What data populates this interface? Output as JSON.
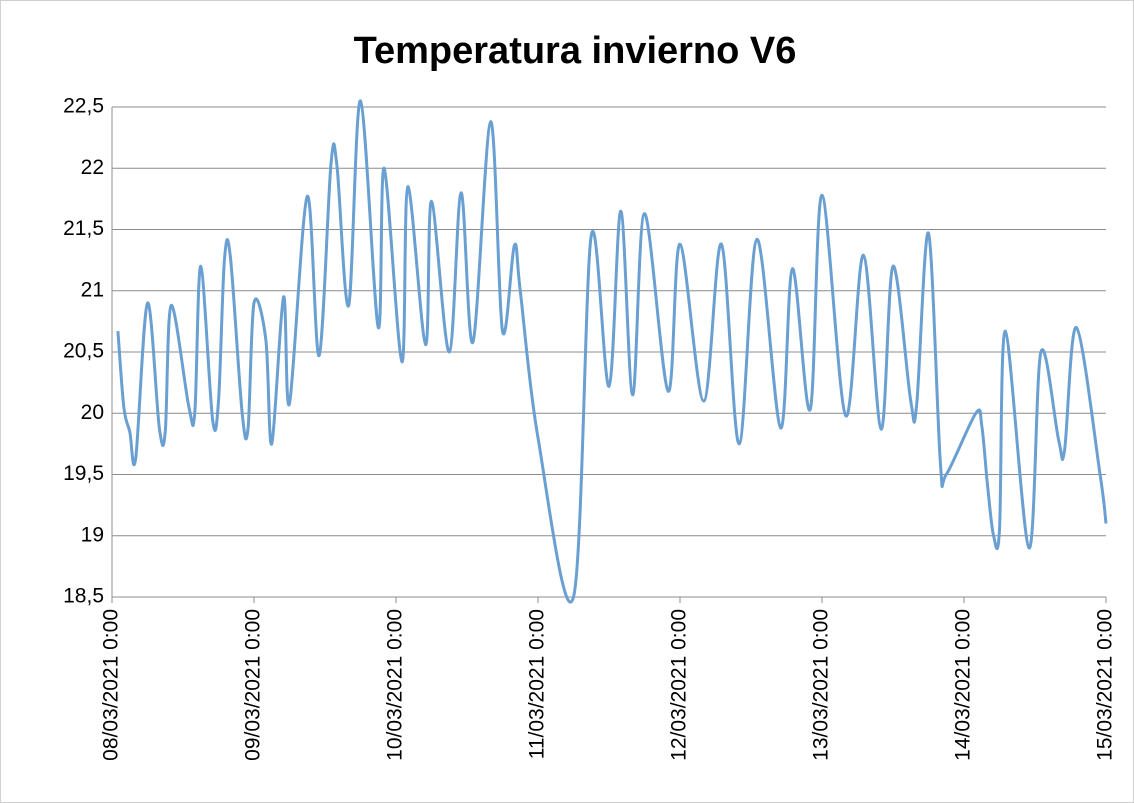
{
  "chart_data": {
    "type": "line",
    "title": "Temperatura invierno V6",
    "xlim": [
      "08/03/2021 0:00",
      "15/03/2021 0:00"
    ],
    "xticks": [
      "08/03/2021 0:00",
      "09/03/2021 0:00",
      "10/03/2021 0:00",
      "11/03/2021 0:00",
      "12/03/2021 0:00",
      "13/03/2021 0:00",
      "14/03/2021 0:00",
      "15/03/2021 0:00"
    ],
    "ylim": [
      18.5,
      22.5
    ],
    "yticks": [
      {
        "value": 18.5,
        "label": "18,5"
      },
      19,
      {
        "value": 19.5,
        "label": "19,5"
      },
      20,
      {
        "value": 20.5,
        "label": "20,5"
      },
      21,
      {
        "value": 21.5,
        "label": "21,5"
      },
      22,
      {
        "value": 22.5,
        "label": "22,5"
      }
    ],
    "grid": true,
    "x": [
      "08/03/2021 1:00",
      "08/03/2021 2:00",
      "08/03/2021 3:00",
      "08/03/2021 4:00",
      "08/03/2021 6:00",
      "08/03/2021 8:00",
      "08/03/2021 9:00",
      "08/03/2021 10:00",
      "08/03/2021 13:00",
      "08/03/2021 14:00",
      "08/03/2021 15:00",
      "08/03/2021 17:00",
      "08/03/2021 18:00",
      "08/03/2021 19:00",
      "08/03/2021 20:00",
      "08/03/2021 22:00",
      "08/03/2021 23:00",
      "09/03/2021 0:00",
      "09/03/2021 2:00",
      "09/03/2021 3:00",
      "09/03/2021 5:00",
      "09/03/2021 6:00",
      "09/03/2021 9:00",
      "09/03/2021 11:00",
      "09/03/2021 13:00",
      "09/03/2021 14:00",
      "09/03/2021 16:00",
      "09/03/2021 18:00",
      "09/03/2021 21:00",
      "09/03/2021 22:00",
      "10/03/2021 1:00",
      "10/03/2021 2:00",
      "10/03/2021 5:00",
      "10/03/2021 6:00",
      "10/03/2021 9:00",
      "10/03/2021 11:00",
      "10/03/2021 13:00",
      "10/03/2021 16:00",
      "10/03/2021 18:00",
      "10/03/2021 20:00",
      "10/03/2021 21:00",
      "11/03/2021 0:00",
      "11/03/2021 6:00",
      "11/03/2021 9:00",
      "11/03/2021 12:00",
      "11/03/2021 14:00",
      "11/03/2021 16:00",
      "11/03/2021 18:00",
      "11/03/2021 22:00",
      "12/03/2021 0:00",
      "12/03/2021 4:00",
      "12/03/2021 7:00",
      "12/03/2021 10:00",
      "12/03/2021 13:00",
      "12/03/2021 17:00",
      "12/03/2021 19:00",
      "12/03/2021 22:00",
      "13/03/2021 0:00",
      "13/03/2021 4:00",
      "13/03/2021 7:00",
      "13/03/2021 10:00",
      "13/03/2021 12:00",
      "13/03/2021 15:00",
      "13/03/2021 16:00",
      "13/03/2021 18:00",
      "13/03/2021 20:00",
      "13/03/2021 21:00",
      "14/03/2021 2:00",
      "14/03/2021 3:00",
      "14/03/2021 4:00",
      "14/03/2021 5:00",
      "14/03/2021 6:00",
      "14/03/2021 7:00",
      "14/03/2021 11:00",
      "14/03/2021 13:00",
      "14/03/2021 16:00",
      "14/03/2021 17:00",
      "14/03/2021 19:00",
      "14/03/2021 23:00",
      "15/03/2021 0:00"
    ],
    "series": [
      {
        "color": "#6a9fd2",
        "values": [
          20.67,
          20.05,
          19.85,
          19.63,
          20.9,
          19.88,
          19.85,
          20.88,
          20.05,
          20.01,
          21.2,
          19.95,
          20.1,
          21.25,
          21.28,
          20.0,
          19.88,
          20.9,
          20.6,
          19.75,
          20.95,
          20.08,
          21.77,
          20.47,
          22.03,
          22.03,
          20.88,
          22.55,
          20.7,
          22.0,
          20.42,
          21.85,
          20.56,
          21.73,
          20.5,
          21.8,
          20.58,
          22.38,
          20.67,
          21.37,
          21.0,
          19.8,
          18.5,
          21.45,
          20.22,
          21.65,
          20.15,
          21.63,
          20.18,
          21.38,
          20.1,
          21.38,
          19.75,
          21.42,
          19.88,
          21.18,
          20.03,
          21.78,
          19.98,
          21.29,
          19.87,
          21.2,
          20.1,
          20.07,
          21.47,
          19.6,
          19.5,
          20.0,
          19.9,
          19.4,
          19.0,
          19.05,
          20.67,
          18.9,
          20.5,
          19.78,
          19.7,
          20.7,
          19.5,
          19.1
        ]
      }
    ]
  }
}
